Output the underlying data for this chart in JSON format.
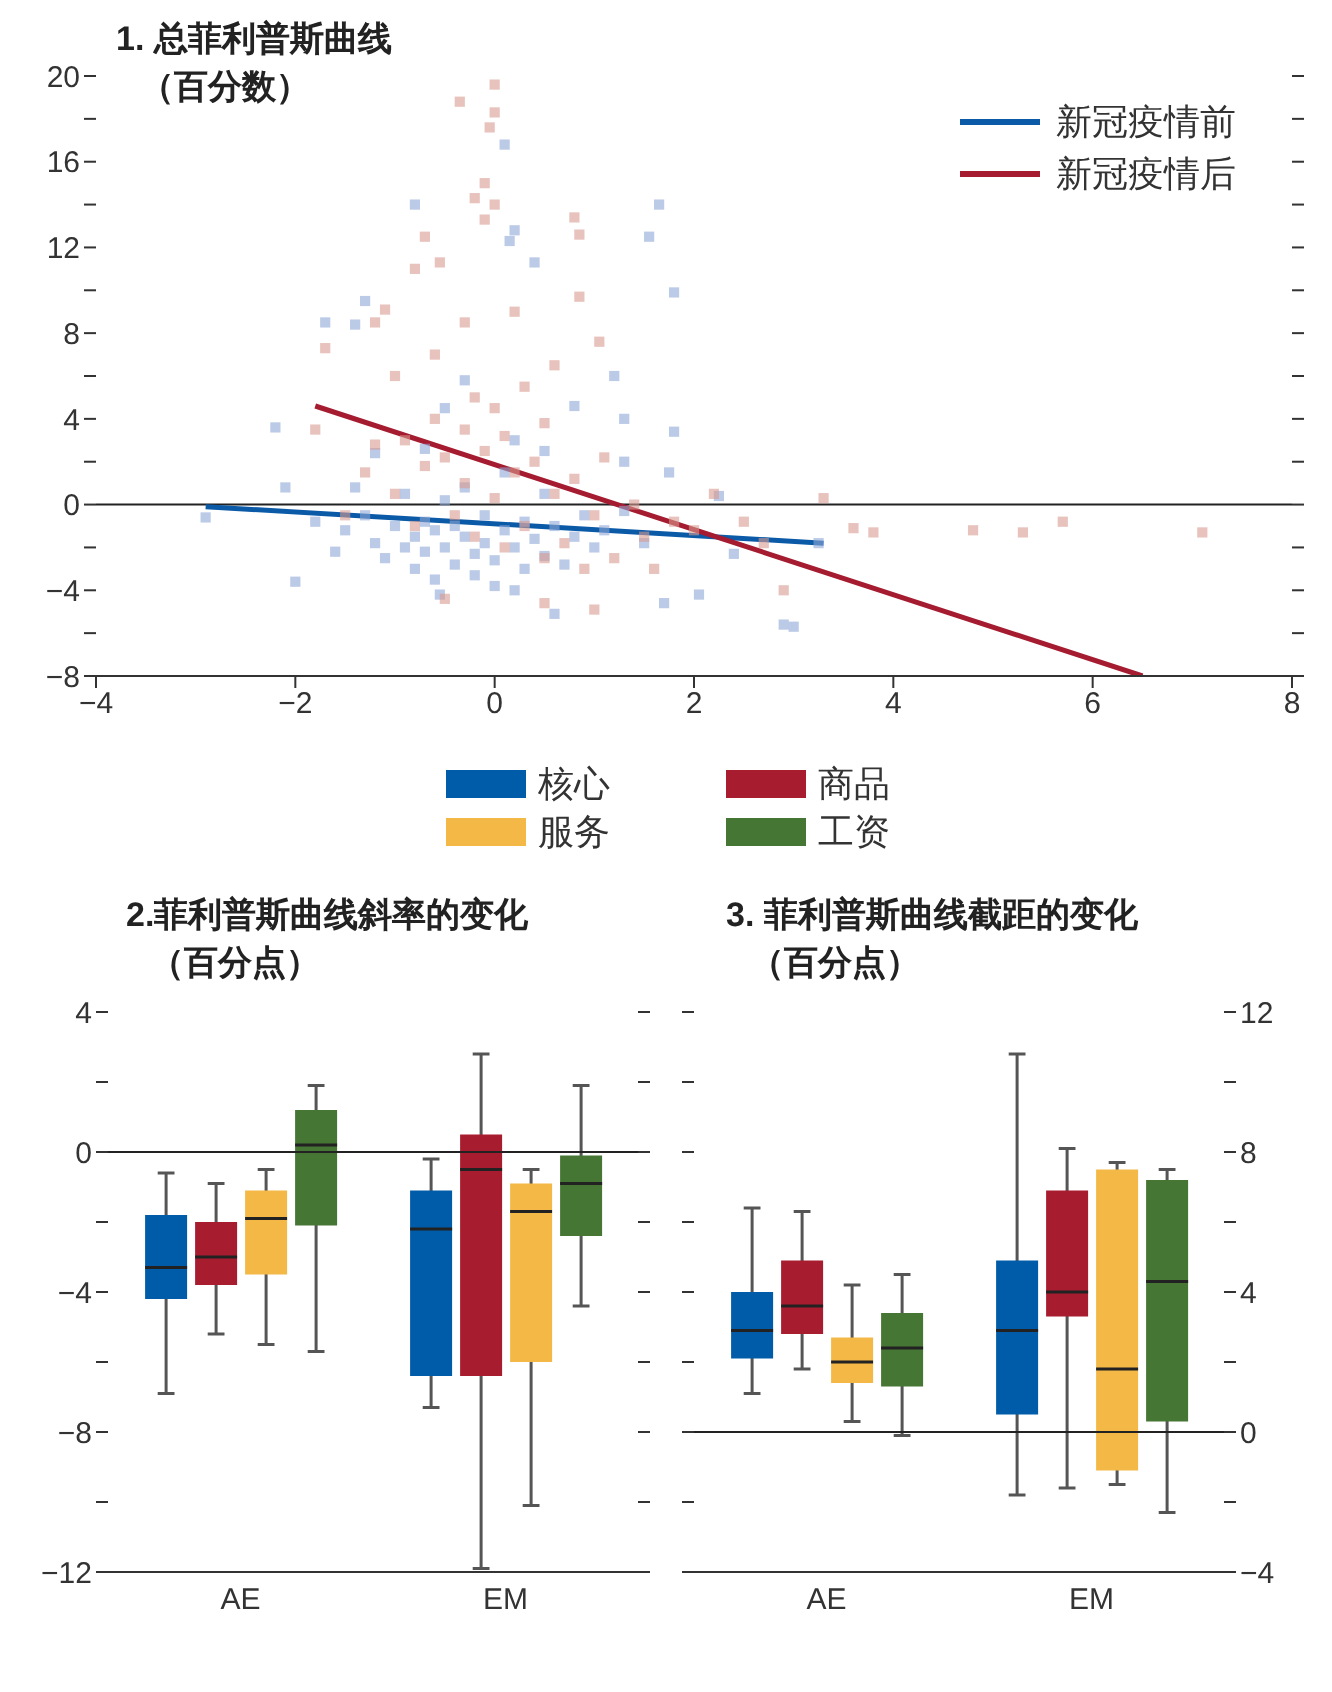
{
  "chart_data": [
    {
      "type": "scatter",
      "title": "1. 总菲利普斯曲线",
      "subtitle": "（百分数）",
      "legend": "top right",
      "xlim": [
        -4,
        8
      ],
      "xticks": [
        {
          "value": -4,
          "label": "−4"
        },
        {
          "value": -2,
          "label": "−2"
        },
        0,
        2,
        4,
        6,
        8
      ],
      "ylim": [
        -8,
        20
      ],
      "yticks": [
        {
          "value": -8,
          "label": "−8"
        },
        {
          "value": -6,
          "label": null
        },
        {
          "value": -4,
          "label": "−4"
        },
        {
          "value": -2,
          "label": null
        },
        0,
        {
          "value": 2,
          "label": null
        },
        4,
        {
          "value": 6,
          "label": null
        },
        8,
        {
          "value": 10,
          "label": null
        },
        12,
        {
          "value": 14,
          "label": null
        },
        16,
        {
          "value": 18,
          "label": null
        },
        20
      ],
      "ref_lines": [
        {
          "axis": "y",
          "value": 0,
          "color": "#222222"
        }
      ],
      "series": [
        {
          "type": "scatter",
          "marker": "square",
          "color": "#8da6d6",
          "x": [
            -1.5,
            -1.3,
            -1.2,
            -1.1,
            -1.0,
            -0.9,
            -0.9,
            -0.8,
            -0.8,
            -0.7,
            -0.7,
            -0.6,
            -0.6,
            -0.5,
            -0.5,
            -0.4,
            -0.4,
            -0.3,
            -0.3,
            -0.2,
            -0.2,
            -0.1,
            -0.1,
            0.0,
            0.0,
            0.1,
            0.1,
            0.2,
            0.3,
            0.3,
            0.4,
            0.5,
            0.5,
            0.6,
            0.7,
            0.8,
            0.9,
            1.0,
            1.1,
            1.3,
            1.5,
            -1.8,
            -1.6,
            -1.4,
            -1.2,
            -0.7,
            -0.5,
            -0.3,
            0.2,
            0.5,
            0.8,
            1.3,
            1.8,
            1.75,
            2.25,
            2.4,
            1.7,
            2.05,
            2.9,
            3.0,
            3.25,
            -2.9,
            -2.1,
            -2.0,
            -2.2,
            -0.8,
            1.65,
            0.1,
            1.55,
            1.8,
            -1.3,
            -1.7,
            -1.4,
            0.2,
            0.15,
            0.4,
            1.2,
            1.3,
            -0.55,
            0.6,
            0.2
          ],
          "values": [
            -1.2,
            -0.5,
            -1.8,
            -2.5,
            -1.0,
            -2.0,
            0.5,
            -1.5,
            -3.0,
            -0.8,
            -2.2,
            -1.2,
            -3.5,
            0.2,
            -2.0,
            -1.0,
            -2.8,
            -1.5,
            0.8,
            -2.3,
            -3.3,
            -0.5,
            -1.8,
            -2.6,
            -3.8,
            -1.2,
            1.5,
            -2.0,
            -0.8,
            -3.0,
            -1.6,
            -2.4,
            0.5,
            -1.0,
            -2.8,
            -1.5,
            -0.5,
            -2.0,
            -1.2,
            -0.3,
            -1.8,
            -0.8,
            -2.2,
            0.8,
            2.4,
            2.6,
            4.5,
            5.8,
            3.0,
            2.5,
            4.6,
            2.0,
            3.4,
            1.5,
            0.4,
            -2.3,
            -4.6,
            -4.2,
            -5.6,
            -5.7,
            -1.8,
            -0.6,
            0.8,
            -3.6,
            3.6,
            14,
            14,
            16.8,
            12.5,
            9.9,
            9.5,
            8.5,
            8.4,
            12.8,
            12.3,
            11.3,
            6.0,
            4.0,
            -4.2,
            -5.1,
            -4.0
          ]
        },
        {
          "type": "scatter",
          "marker": "square",
          "color": "#d99a90",
          "x": [
            -1.5,
            -1.3,
            -1.2,
            -1.0,
            -0.9,
            -0.8,
            -0.7,
            -0.6,
            -0.5,
            -0.4,
            -0.3,
            -0.3,
            -0.2,
            -0.2,
            -0.1,
            0.0,
            0.0,
            0.1,
            0.1,
            0.2,
            0.3,
            0.3,
            0.4,
            0.5,
            0.5,
            0.6,
            0.7,
            0.8,
            0.9,
            1.0,
            1.1,
            1.2,
            1.4,
            1.5,
            1.6,
            1.8,
            2.0,
            2.2,
            2.5,
            2.7,
            -0.6,
            -0.3,
            0.2,
            0.6,
            -1.0,
            0.0,
            -0.35,
            0.0,
            -0.05,
            -0.1,
            -0.2,
            0.0,
            -0.1,
            0.8,
            0.85,
            -0.7,
            -0.8,
            -0.55,
            0.85,
            -1.2,
            -1.1,
            -1.7,
            1.05,
            -1.8,
            3.3,
            3.6,
            3.8,
            4.8,
            5.3,
            5.7,
            7.1,
            -0.5,
            0.5,
            1.0,
            2.9
          ],
          "values": [
            -0.5,
            1.5,
            2.8,
            0.5,
            3.0,
            -1.0,
            1.8,
            4.0,
            2.2,
            -0.5,
            3.5,
            1.0,
            5.0,
            -1.5,
            2.5,
            4.5,
            0.3,
            -2.0,
            3.2,
            1.5,
            5.5,
            -1.0,
            2.0,
            -2.5,
            3.8,
            0.5,
            -1.8,
            1.2,
            -3.0,
            -0.5,
            2.2,
            -2.5,
            0.0,
            -1.5,
            -3.0,
            -0.8,
            -1.2,
            0.5,
            -0.8,
            -1.8,
            7.0,
            8.5,
            9.0,
            6.5,
            6.0,
            19.6,
            18.8,
            18.3,
            17.6,
            15.0,
            14.3,
            14.0,
            13.3,
            13.4,
            12.6,
            12.5,
            11.0,
            11.3,
            9.7,
            8.5,
            9.1,
            7.3,
            7.6,
            3.5,
            0.3,
            -1.1,
            -1.3,
            -1.2,
            -1.3,
            -0.8,
            -1.3,
            -4.4,
            -4.6,
            -4.9,
            -4.0
          ]
        },
        {
          "type": "line",
          "name": "新冠疫情前",
          "color": "#0b5aa8",
          "x": [
            -2.9,
            3.3
          ],
          "values": [
            -0.1,
            -1.8
          ],
          "marker": "none"
        },
        {
          "type": "line",
          "name": "新冠疫情后",
          "color": "#a51c30",
          "x": [
            -1.8,
            6.5
          ],
          "values": [
            4.6,
            -8
          ],
          "marker": "none"
        }
      ]
    },
    {
      "type": "box",
      "title": "2.菲利普斯曲线斜率的变化",
      "subtitle": "（百分点）",
      "legend": "top",
      "categories": [
        "AE",
        "EM"
      ],
      "ylim": [
        -12,
        4
      ],
      "yticks": [
        {
          "value": -12,
          "label": "−12"
        },
        {
          "value": -10,
          "label": null
        },
        {
          "value": -8,
          "label": "−8"
        },
        {
          "value": -6,
          "label": null
        },
        {
          "value": -4,
          "label": "−4"
        },
        {
          "value": -2,
          "label": null
        },
        0,
        {
          "value": 2,
          "label": null
        },
        4
      ],
      "ref_lines": [
        {
          "axis": "y",
          "value": 0,
          "color": "#222222"
        }
      ],
      "series": [
        {
          "name": "核心",
          "color": "#005ba8",
          "boxes": [
            {
              "low": -6.9,
              "q1": -4.2,
              "median": -3.3,
              "q3": -1.8,
              "high": -0.6
            },
            {
              "low": -7.3,
              "q1": -6.4,
              "median": -2.2,
              "q3": -1.1,
              "high": -0.2
            }
          ]
        },
        {
          "name": "商品",
          "color": "#a71d2f",
          "boxes": [
            {
              "low": -5.2,
              "q1": -3.8,
              "median": -3.0,
              "q3": -2.0,
              "high": -0.9
            },
            {
              "low": -11.9,
              "q1": -6.4,
              "median": -0.5,
              "q3": 0.5,
              "high": 2.8
            }
          ]
        },
        {
          "name": "服务",
          "color": "#f3b846",
          "boxes": [
            {
              "low": -5.5,
              "q1": -3.5,
              "median": -1.9,
              "q3": -1.1,
              "high": -0.5
            },
            {
              "low": -10.1,
              "q1": -6.0,
              "median": -1.7,
              "q3": -0.9,
              "high": -0.5
            }
          ]
        },
        {
          "name": "工资",
          "color": "#467634",
          "boxes": [
            {
              "low": -5.7,
              "q1": -2.1,
              "median": 0.2,
              "q3": 1.2,
              "high": 1.9
            },
            {
              "low": -4.4,
              "q1": -2.4,
              "median": -0.9,
              "q3": -0.1,
              "high": 1.9
            }
          ]
        }
      ]
    },
    {
      "type": "box",
      "title": "3. 菲利普斯曲线截距的变化",
      "subtitle": "（百分点）",
      "categories": [
        "AE",
        "EM"
      ],
      "y2lim": [
        -4,
        12
      ],
      "y2ticks": [
        {
          "value": -4,
          "label": "−4"
        },
        {
          "value": -2,
          "label": null
        },
        0,
        {
          "value": 2,
          "label": null
        },
        4,
        {
          "value": 6,
          "label": null
        },
        8,
        {
          "value": 10,
          "label": null
        },
        12
      ],
      "ref_lines": [
        {
          "axis": "y2",
          "value": 0,
          "color": "#222222"
        }
      ],
      "series": [
        {
          "axis": "y2",
          "color": "#005ba8",
          "boxes": [
            {
              "low": 1.1,
              "q1": 2.1,
              "median": 2.9,
              "q3": 4.0,
              "high": 6.4
            },
            {
              "low": -1.8,
              "q1": 0.5,
              "median": 2.9,
              "q3": 4.9,
              "high": 10.8
            }
          ]
        },
        {
          "axis": "y2",
          "color": "#a71d2f",
          "boxes": [
            {
              "low": 1.8,
              "q1": 2.8,
              "median": 3.6,
              "q3": 4.9,
              "high": 6.3
            },
            {
              "low": -1.6,
              "q1": 3.3,
              "median": 4.0,
              "q3": 6.9,
              "high": 8.1
            }
          ]
        },
        {
          "axis": "y2",
          "color": "#f3b846",
          "boxes": [
            {
              "low": 0.3,
              "q1": 1.4,
              "median": 2.0,
              "q3": 2.7,
              "high": 4.2
            },
            {
              "low": -1.5,
              "q1": -1.1,
              "median": 1.8,
              "q3": 7.5,
              "high": 7.7
            }
          ]
        },
        {
          "axis": "y2",
          "color": "#467634",
          "boxes": [
            {
              "low": -0.1,
              "q1": 1.3,
              "median": 2.4,
              "q3": 3.4,
              "high": 4.5
            },
            {
              "low": -2.3,
              "q1": 0.3,
              "median": 4.3,
              "q3": 7.2,
              "high": 7.5
            }
          ]
        }
      ]
    }
  ]
}
